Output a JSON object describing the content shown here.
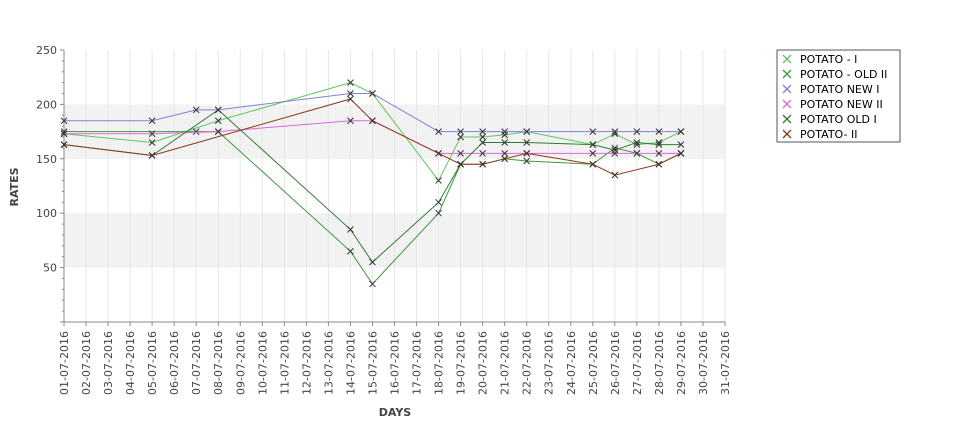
{
  "chart_data": {
    "type": "line",
    "xlabel": "DAYS",
    "ylabel": "RATES",
    "ylim": [
      0,
      250
    ],
    "yticks": [
      50,
      100,
      150,
      200,
      250
    ],
    "x": [
      "01-07-2016",
      "02-07-2016",
      "03-07-2016",
      "04-07-2016",
      "05-07-2016",
      "06-07-2016",
      "07-07-2016",
      "08-07-2016",
      "09-07-2016",
      "10-07-2016",
      "11-07-2016",
      "12-07-2016",
      "13-07-2016",
      "14-07-2016",
      "15-07-2016",
      "16-07-2016",
      "17-07-2016",
      "18-07-2016",
      "19-07-2016",
      "20-07-2016",
      "21-07-2016",
      "22-07-2016",
      "23-07-2016",
      "24-07-2016",
      "25-07-2016",
      "26-07-2016",
      "27-07-2016",
      "28-07-2016",
      "29-07-2016",
      "30-07-2016",
      "31-07-2016"
    ],
    "grid": true,
    "legend_position": "right",
    "series": [
      {
        "name": "POTATO - I",
        "color": "#5cc85c",
        "points": [
          [
            "01-07-2016",
            173
          ],
          [
            "05-07-2016",
            165
          ],
          [
            "08-07-2016",
            185
          ],
          [
            "14-07-2016",
            220
          ],
          [
            "15-07-2016",
            210
          ],
          [
            "18-07-2016",
            130
          ],
          [
            "19-07-2016",
            170
          ],
          [
            "20-07-2016",
            170
          ],
          [
            "21-07-2016",
            172
          ],
          [
            "22-07-2016",
            175
          ],
          [
            "25-07-2016",
            163
          ],
          [
            "26-07-2016",
            173
          ],
          [
            "27-07-2016",
            163
          ],
          [
            "28-07-2016",
            165
          ],
          [
            "29-07-2016",
            175
          ]
        ]
      },
      {
        "name": "POTATO - OLD II",
        "color": "#3a9a3a",
        "points": [
          [
            "01-07-2016",
            175
          ],
          [
            "07-07-2016",
            175
          ],
          [
            "08-07-2016",
            175
          ],
          [
            "14-07-2016",
            65
          ],
          [
            "15-07-2016",
            35
          ],
          [
            "18-07-2016",
            100
          ],
          [
            "19-07-2016",
            145
          ],
          [
            "20-07-2016",
            145
          ],
          [
            "21-07-2016",
            150
          ],
          [
            "22-07-2016",
            148
          ],
          [
            "25-07-2016",
            145
          ],
          [
            "26-07-2016",
            160
          ],
          [
            "27-07-2016",
            155
          ],
          [
            "28-07-2016",
            145
          ],
          [
            "29-07-2016",
            155
          ]
        ]
      },
      {
        "name": "POTATO NEW I",
        "color": "#8080dd",
        "points": [
          [
            "01-07-2016",
            185
          ],
          [
            "05-07-2016",
            185
          ],
          [
            "07-07-2016",
            195
          ],
          [
            "08-07-2016",
            195
          ],
          [
            "14-07-2016",
            210
          ],
          [
            "15-07-2016",
            210
          ],
          [
            "18-07-2016",
            175
          ],
          [
            "19-07-2016",
            175
          ],
          [
            "20-07-2016",
            175
          ],
          [
            "21-07-2016",
            175
          ],
          [
            "22-07-2016",
            175
          ],
          [
            "25-07-2016",
            175
          ],
          [
            "26-07-2016",
            175
          ],
          [
            "27-07-2016",
            175
          ],
          [
            "28-07-2016",
            175
          ],
          [
            "29-07-2016",
            175
          ]
        ]
      },
      {
        "name": "POTATO NEW II",
        "color": "#dd66dd",
        "points": [
          [
            "01-07-2016",
            173
          ],
          [
            "05-07-2016",
            173
          ],
          [
            "08-07-2016",
            175
          ],
          [
            "14-07-2016",
            185
          ],
          [
            "15-07-2016",
            185
          ],
          [
            "18-07-2016",
            155
          ],
          [
            "19-07-2016",
            155
          ],
          [
            "20-07-2016",
            155
          ],
          [
            "21-07-2016",
            155
          ],
          [
            "22-07-2016",
            155
          ],
          [
            "25-07-2016",
            155
          ],
          [
            "26-07-2016",
            155
          ],
          [
            "27-07-2016",
            155
          ],
          [
            "28-07-2016",
            155
          ],
          [
            "29-07-2016",
            155
          ]
        ]
      },
      {
        "name": "POTATO OLD I",
        "color": "#2e7d2e",
        "points": [
          [
            "01-07-2016",
            163
          ],
          [
            "05-07-2016",
            153
          ],
          [
            "08-07-2016",
            195
          ],
          [
            "14-07-2016",
            85
          ],
          [
            "15-07-2016",
            55
          ],
          [
            "18-07-2016",
            110
          ],
          [
            "19-07-2016",
            145
          ],
          [
            "20-07-2016",
            165
          ],
          [
            "21-07-2016",
            165
          ],
          [
            "22-07-2016",
            165
          ],
          [
            "25-07-2016",
            163
          ],
          [
            "26-07-2016",
            158
          ],
          [
            "27-07-2016",
            165
          ],
          [
            "28-07-2016",
            163
          ],
          [
            "29-07-2016",
            163
          ]
        ]
      },
      {
        "name": "POTATO- II",
        "color": "#8b3a1a",
        "points": [
          [
            "01-07-2016",
            163
          ],
          [
            "05-07-2016",
            153
          ],
          [
            "14-07-2016",
            205
          ],
          [
            "15-07-2016",
            185
          ],
          [
            "18-07-2016",
            155
          ],
          [
            "19-07-2016",
            145
          ],
          [
            "20-07-2016",
            145
          ],
          [
            "21-07-2016",
            150
          ],
          [
            "22-07-2016",
            155
          ],
          [
            "25-07-2016",
            145
          ],
          [
            "26-07-2016",
            135
          ],
          [
            "28-07-2016",
            145
          ],
          [
            "29-07-2016",
            155
          ]
        ]
      }
    ]
  }
}
